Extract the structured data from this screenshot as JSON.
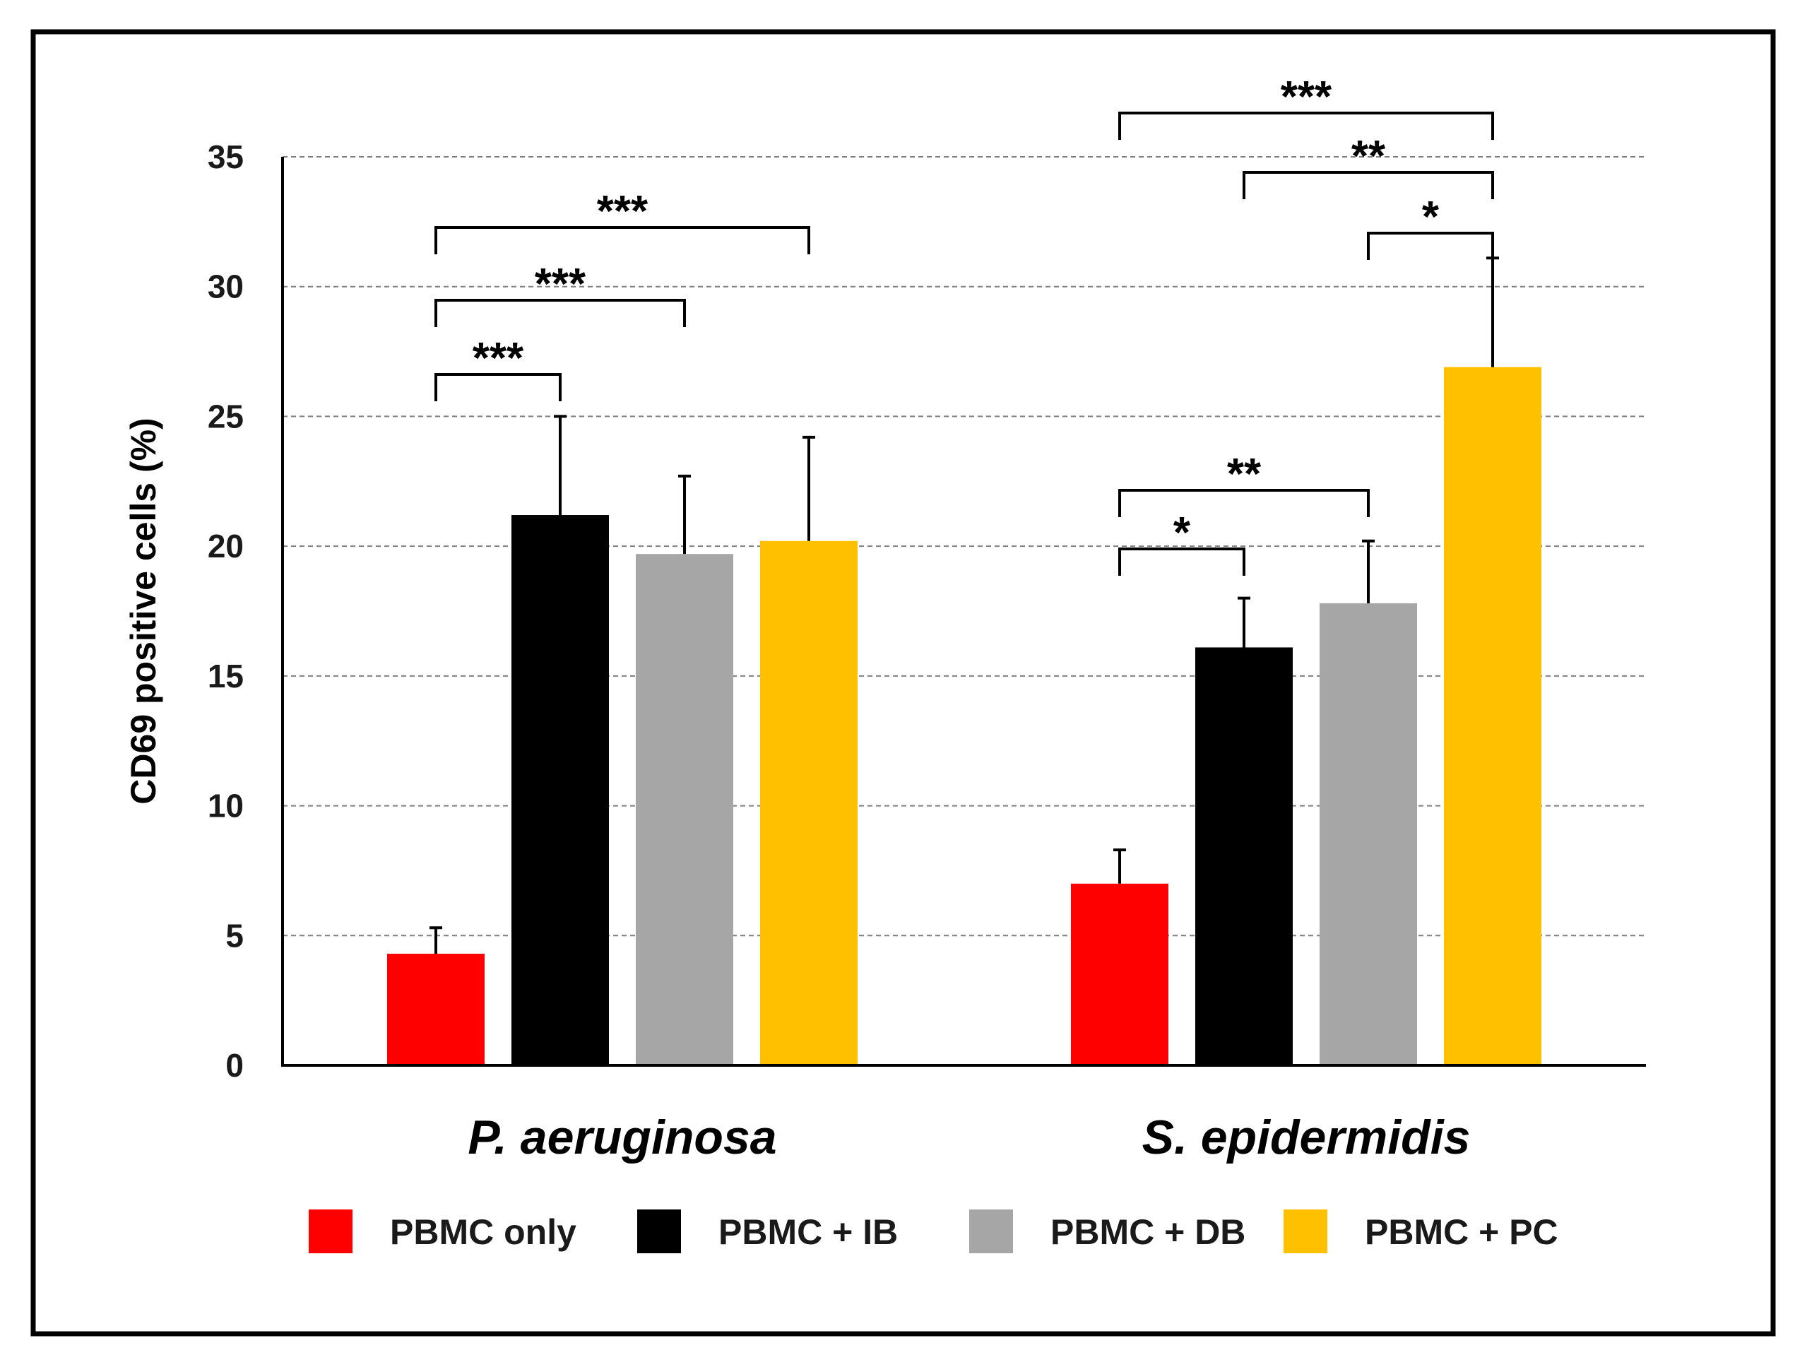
{
  "chart_data": {
    "type": "bar",
    "title": "",
    "xlabel": "",
    "ylabel": "CD69 positive cells (%)",
    "ylim": [
      0,
      35
    ],
    "yticks": [
      0,
      5,
      10,
      15,
      20,
      25,
      30,
      35
    ],
    "grid": "horizontal-dashed",
    "legend_position": "bottom",
    "categories": [
      "P. aeruginosa",
      "S. epidermidis"
    ],
    "series": [
      {
        "name": "PBMC only",
        "color": "#ff0000",
        "values": [
          4.3,
          7.0
        ],
        "errors": [
          1.0,
          1.3
        ]
      },
      {
        "name": "PBMC + IB",
        "color": "#000000",
        "values": [
          21.2,
          16.1
        ],
        "errors": [
          3.8,
          1.9
        ]
      },
      {
        "name": "PBMC + DB",
        "color": "#a6a6a6",
        "values": [
          19.7,
          17.8
        ],
        "errors": [
          3.0,
          2.4
        ]
      },
      {
        "name": "PBMC + PC",
        "color": "#ffc000",
        "values": [
          20.2,
          26.9
        ],
        "errors": [
          4.0,
          4.2
        ]
      }
    ],
    "significance": [
      {
        "category": 0,
        "from": 0,
        "to": 1,
        "label": "***"
      },
      {
        "category": 0,
        "from": 0,
        "to": 2,
        "label": "***"
      },
      {
        "category": 0,
        "from": 0,
        "to": 3,
        "label": "***"
      },
      {
        "category": 1,
        "from": 0,
        "to": 1,
        "label": "*"
      },
      {
        "category": 1,
        "from": 0,
        "to": 2,
        "label": "**"
      },
      {
        "category": 1,
        "from": 2,
        "to": 3,
        "label": "*"
      },
      {
        "category": 1,
        "from": 1,
        "to": 3,
        "label": "**"
      },
      {
        "category": 1,
        "from": 0,
        "to": 3,
        "label": "***"
      }
    ]
  }
}
